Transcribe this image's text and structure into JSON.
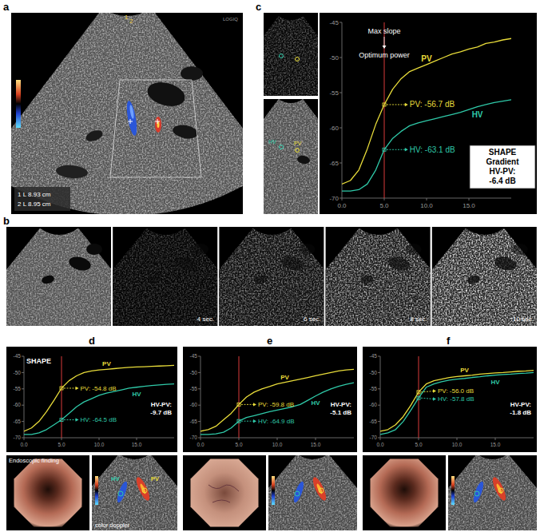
{
  "figure": {
    "panel_labels": [
      "a",
      "b",
      "c",
      "d",
      "e",
      "f"
    ],
    "panel_a": {
      "header": "LOGIQ",
      "marker_ids": [
        "1",
        "2"
      ],
      "measurements": [
        "1 L 8.93 cm",
        "2 L 8.95 cm"
      ]
    },
    "panel_b": {
      "times": [
        "4 sec.",
        "6 sec.",
        "8 sec.",
        "10 sec."
      ]
    },
    "panel_c": {
      "thumbnail_labels": [
        "HV",
        "PV"
      ]
    },
    "panel_d": {
      "endoscopy_label": "Endoscopic finding",
      "doppler_label": "color doppler",
      "doppler_vessels": [
        "HV",
        "PV"
      ]
    }
  },
  "chart_data": [
    {
      "type": "line",
      "x": [
        0,
        1,
        2,
        3,
        4,
        5,
        6,
        7,
        8,
        9,
        10,
        11,
        12,
        13,
        14,
        15,
        16,
        17,
        18,
        19,
        20
      ],
      "xlim": [
        0,
        20
      ],
      "xticks": [
        {
          "value": 0,
          "label": "0.0"
        },
        {
          "value": 5,
          "label": "5.0"
        },
        {
          "value": 10,
          "label": "10.0"
        },
        {
          "value": 15,
          "label": "15.0"
        }
      ],
      "ylim": [
        -70,
        -45
      ],
      "yticks": [
        -70,
        -65,
        -60,
        -55,
        -50,
        -45
      ],
      "grid": false,
      "series": [
        {
          "name": "PV",
          "color": "#e8dc3a",
          "values": [
            -68,
            -67.5,
            -66,
            -63,
            -59.5,
            -56.7,
            -54.5,
            -53,
            -52,
            -51.5,
            -51,
            -50.5,
            -50,
            -49.5,
            -49.2,
            -48.8,
            -48.5,
            -48,
            -47.8,
            -47.5,
            -47.3
          ],
          "readout": {
            "value": -56.7,
            "text": "PV: -56.7 dB"
          }
        },
        {
          "name": "HV",
          "color": "#2fc9a8",
          "values": [
            -69,
            -69,
            -68.8,
            -68,
            -66,
            -63.1,
            -61.5,
            -60.5,
            -59.7,
            -59.3,
            -59,
            -58.7,
            -58.4,
            -58.1,
            -57.8,
            -57.4,
            -57,
            -56.7,
            -56.4,
            -56.2,
            -56
          ],
          "readout": {
            "value": -63.1,
            "text": "HV: -63.1 dB"
          }
        }
      ],
      "marker_line": {
        "x": 5,
        "color": "#d93a3a",
        "labels": [
          "Max slope",
          "Optimum power"
        ]
      },
      "gradient": {
        "lines": [
          "SHAPE",
          "Gradient",
          "HV-PV:",
          "-6.4 dB"
        ]
      }
    },
    {
      "type": "line",
      "title": "SHAPE",
      "x": [
        0,
        1,
        2,
        3,
        4,
        5,
        6,
        7,
        8,
        9,
        10,
        11,
        12,
        13,
        14,
        15,
        16,
        17,
        18,
        19,
        20
      ],
      "xlim": [
        0,
        20
      ],
      "xticks": [
        {
          "value": 0,
          "label": "0.0"
        },
        {
          "value": 5,
          "label": "5.0"
        },
        {
          "value": 10,
          "label": "10.0"
        },
        {
          "value": 15,
          "label": "15.0"
        }
      ],
      "ylim": [
        -70,
        -45
      ],
      "yticks": [
        -70,
        -65,
        -60,
        -55,
        -50,
        -45
      ],
      "grid": false,
      "series": [
        {
          "name": "PV",
          "color": "#e8dc3a",
          "values": [
            -68,
            -67,
            -65,
            -62,
            -58.5,
            -54.8,
            -52.5,
            -51,
            -50,
            -49.5,
            -49.2,
            -49,
            -48.8,
            -48.6,
            -48.4,
            -48.3,
            -48.2,
            -48.1,
            -48,
            -47.9,
            -47.8
          ],
          "readout": {
            "value": -54.8,
            "text": "PV: -54.8 dB"
          }
        },
        {
          "name": "HV",
          "color": "#2fc9a8",
          "values": [
            -69,
            -69,
            -68.5,
            -67.5,
            -66,
            -64.5,
            -62.5,
            -60.5,
            -59,
            -58,
            -57,
            -56.3,
            -55.8,
            -55.3,
            -54.8,
            -54.5,
            -54.2,
            -54,
            -53.8,
            -53.6,
            -53.5
          ],
          "readout": {
            "value": -64.5,
            "text": "HV: -64.5 dB"
          }
        }
      ],
      "marker_line": {
        "x": 5,
        "color": "#d93a3a"
      },
      "gradient": {
        "lines": [
          "HV-PV:",
          "-9.7 dB"
        ]
      }
    },
    {
      "type": "line",
      "x": [
        0,
        1,
        2,
        3,
        4,
        5,
        6,
        7,
        8,
        9,
        10,
        11,
        12,
        13,
        14,
        15,
        16,
        17,
        18,
        19,
        20
      ],
      "xlim": [
        0,
        20
      ],
      "xticks": [
        {
          "value": 0,
          "label": "0.0"
        },
        {
          "value": 5,
          "label": "5.0"
        },
        {
          "value": 10,
          "label": "10.0"
        },
        {
          "value": 15,
          "label": "15.0"
        }
      ],
      "ylim": [
        -70,
        -45
      ],
      "yticks": [
        -70,
        -65,
        -60,
        -55,
        -50,
        -45
      ],
      "grid": false,
      "series": [
        {
          "name": "PV",
          "color": "#e8dc3a",
          "values": [
            -68,
            -67.5,
            -66.5,
            -64.5,
            -62.5,
            -59.8,
            -57.5,
            -56,
            -55,
            -54.3,
            -53.5,
            -53,
            -52.5,
            -52,
            -51.5,
            -51,
            -50.5,
            -50,
            -49.5,
            -49.2,
            -49
          ],
          "readout": {
            "value": -59.8,
            "text": "PV: -59.8 dB"
          }
        },
        {
          "name": "HV",
          "color": "#2fc9a8",
          "values": [
            -69,
            -69,
            -68.8,
            -68.3,
            -67,
            -64.9,
            -63.8,
            -63.2,
            -62.6,
            -62,
            -61.5,
            -61,
            -60.5,
            -59.8,
            -58.5,
            -57.2,
            -56,
            -55,
            -54.2,
            -53.6,
            -53.1
          ],
          "readout": {
            "value": -64.9,
            "text": "HV: -64.9 dB"
          }
        }
      ],
      "marker_line": {
        "x": 5,
        "color": "#d93a3a"
      },
      "gradient": {
        "lines": [
          "HV-PV:",
          "-5.1 dB"
        ]
      }
    },
    {
      "type": "line",
      "x": [
        0,
        1,
        2,
        3,
        4,
        5,
        6,
        7,
        8,
        9,
        10,
        11,
        12,
        13,
        14,
        15,
        16,
        17,
        18,
        19,
        20
      ],
      "xlim": [
        0,
        20
      ],
      "xticks": [
        {
          "value": 0,
          "label": "0.0"
        },
        {
          "value": 5,
          "label": "5.0"
        },
        {
          "value": 10,
          "label": "10.0"
        },
        {
          "value": 15,
          "label": "15.0"
        }
      ],
      "ylim": [
        -70,
        -45
      ],
      "yticks": [
        -70,
        -65,
        -60,
        -55,
        -50,
        -45
      ],
      "grid": false,
      "series": [
        {
          "name": "PV",
          "color": "#e8dc3a",
          "values": [
            -68,
            -67.5,
            -66,
            -63.5,
            -60,
            -56,
            -53.5,
            -52.5,
            -52,
            -51.5,
            -51.2,
            -51,
            -50.8,
            -50.5,
            -50.3,
            -50.1,
            -50,
            -49.8,
            -49.6,
            -49.5,
            -49.3
          ],
          "readout": {
            "value": -56.0,
            "text": "PV: -56.0 dB"
          }
        },
        {
          "name": "HV",
          "color": "#2fc9a8",
          "values": [
            -69,
            -68.5,
            -67.5,
            -65,
            -61.5,
            -57.8,
            -54.5,
            -53.5,
            -52.8,
            -52.3,
            -52,
            -51.8,
            -51.5,
            -51.3,
            -51,
            -50.8,
            -50.6,
            -50.5,
            -50.3,
            -50.2,
            -50
          ],
          "readout": {
            "value": -57.8,
            "text": "HV: -57.8 dB"
          }
        }
      ],
      "marker_line": {
        "x": 5,
        "color": "#d93a3a"
      },
      "gradient": {
        "lines": [
          "HV-PV:",
          "-1.8 dB"
        ]
      }
    }
  ]
}
